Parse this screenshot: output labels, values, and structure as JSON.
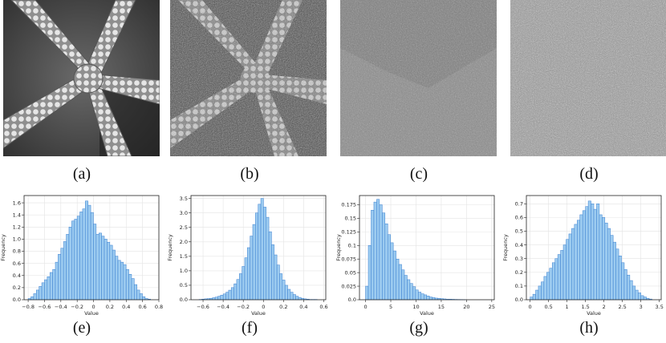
{
  "figure": {
    "image_captions": [
      "(a)",
      "(b)",
      "(c)",
      "(d)"
    ],
    "hist_captions": [
      "(e)",
      "(f)",
      "(g)",
      "(h)"
    ]
  },
  "chart_data": [
    {
      "type": "bar",
      "panel": "(e)",
      "xlabel": "Value",
      "ylabel": "Frequency",
      "xlim": [
        -0.85,
        0.8
      ],
      "ylim": [
        0,
        1.72
      ],
      "xticks": [
        -0.8,
        -0.6,
        -0.4,
        -0.2,
        0.0,
        0.2,
        0.4,
        0.6,
        0.8
      ],
      "yticks": [
        0.0,
        0.2,
        0.4,
        0.6,
        0.8,
        1.0,
        1.2,
        1.4,
        1.6
      ],
      "grid": true,
      "bin_start": -0.8,
      "bin_width": 0.0333,
      "values": [
        0.02,
        0.05,
        0.1,
        0.16,
        0.22,
        0.28,
        0.33,
        0.38,
        0.45,
        0.5,
        0.62,
        0.75,
        0.85,
        0.96,
        1.08,
        1.2,
        1.3,
        1.33,
        1.38,
        1.45,
        1.5,
        1.63,
        1.56,
        1.44,
        1.25,
        1.08,
        1.1,
        1.05,
        1.0,
        0.95,
        0.9,
        0.82,
        0.72,
        0.65,
        0.62,
        0.58,
        0.5,
        0.42,
        0.35,
        0.25,
        0.16,
        0.1,
        0.05,
        0.02,
        0.01
      ]
    },
    {
      "type": "bar",
      "panel": "(f)",
      "xlabel": "Value",
      "ylabel": "Frequency",
      "xlim": [
        -0.72,
        0.62
      ],
      "ylim": [
        0,
        3.6
      ],
      "xticks": [
        -0.6,
        -0.4,
        -0.2,
        0.0,
        0.2,
        0.4,
        0.6
      ],
      "yticks": [
        0.0,
        0.5,
        1.0,
        1.5,
        2.0,
        2.5,
        3.0,
        3.5
      ],
      "grid": true,
      "bin_start": -0.64,
      "bin_width": 0.0267,
      "values": [
        0.01,
        0.02,
        0.03,
        0.04,
        0.05,
        0.07,
        0.09,
        0.12,
        0.16,
        0.2,
        0.26,
        0.33,
        0.42,
        0.55,
        0.7,
        0.9,
        1.15,
        1.45,
        1.8,
        2.2,
        2.6,
        3.0,
        3.3,
        3.5,
        3.2,
        2.85,
        2.35,
        1.9,
        1.55,
        1.2,
        0.9,
        0.68,
        0.5,
        0.36,
        0.26,
        0.18,
        0.12,
        0.08,
        0.05,
        0.03,
        0.02,
        0.01,
        0.01,
        0.01
      ]
    },
    {
      "type": "bar",
      "panel": "(g)",
      "xlabel": "Value",
      "ylabel": "Frequency",
      "xlim": [
        -1.2,
        25.5
      ],
      "ylim": [
        0,
        0.192
      ],
      "xticks": [
        0,
        5,
        10,
        15,
        20,
        25
      ],
      "yticks": [
        0.0,
        0.025,
        0.05,
        0.075,
        0.1,
        0.125,
        0.15,
        0.175
      ],
      "grid": true,
      "bin_start": 0,
      "bin_width": 0.55,
      "values": [
        0.025,
        0.1,
        0.165,
        0.18,
        0.185,
        0.175,
        0.16,
        0.14,
        0.12,
        0.105,
        0.09,
        0.075,
        0.065,
        0.055,
        0.045,
        0.037,
        0.03,
        0.024,
        0.018,
        0.014,
        0.011,
        0.009,
        0.007,
        0.005,
        0.004,
        0.003,
        0.0025,
        0.002,
        0.0015,
        0.001,
        0.001,
        0.0008,
        0.0006,
        0.0005,
        0.0004,
        0.0003
      ]
    },
    {
      "type": "bar",
      "panel": "(h)",
      "xlabel": "Value",
      "ylabel": "Frequency",
      "xlim": [
        -0.1,
        3.55
      ],
      "ylim": [
        0,
        0.76
      ],
      "xticks": [
        0.0,
        0.5,
        1.0,
        1.5,
        2.0,
        2.5,
        3.0,
        3.5
      ],
      "yticks": [
        0.0,
        0.1,
        0.2,
        0.3,
        0.4,
        0.5,
        0.6,
        0.7
      ],
      "grid": true,
      "bin_start": 0.0,
      "bin_width": 0.075,
      "values": [
        0.02,
        0.04,
        0.07,
        0.1,
        0.13,
        0.17,
        0.2,
        0.23,
        0.27,
        0.3,
        0.33,
        0.36,
        0.4,
        0.44,
        0.48,
        0.52,
        0.55,
        0.58,
        0.62,
        0.65,
        0.68,
        0.72,
        0.7,
        0.66,
        0.7,
        0.62,
        0.6,
        0.56,
        0.52,
        0.47,
        0.42,
        0.37,
        0.32,
        0.27,
        0.22,
        0.18,
        0.14,
        0.1,
        0.07,
        0.05,
        0.03,
        0.02,
        0.01,
        0.005
      ]
    }
  ]
}
